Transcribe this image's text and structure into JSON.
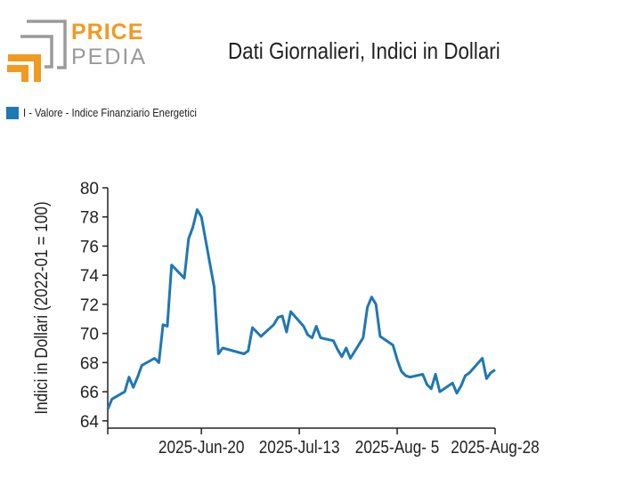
{
  "logo": {
    "word_top": "PRICE",
    "word_bottom": "PEDIA"
  },
  "colors": {
    "line": "#1f77b4",
    "logo_orange": "#f29a1f",
    "logo_gray": "#9a9a9a"
  },
  "chart_data": {
    "type": "line",
    "title": "Dati Giornalieri, Indici in Dollari",
    "ylabel": "Indici in Dollari (2022-01 = 100)",
    "xlabel": "",
    "ylim": [
      63.5,
      80
    ],
    "yticks": [
      64,
      66,
      68,
      70,
      72,
      74,
      76,
      78,
      80
    ],
    "xticks": [
      "2025-Jun-20",
      "2025-Jul-13",
      "2025-Aug- 5",
      "2025-Aug-28"
    ],
    "xlim": [
      "2025-May-29",
      "2025-Aug-28"
    ],
    "grid": false,
    "legend_position": "top-left",
    "series": [
      {
        "name": "I - Valore - Indice Finanziario Energetici",
        "x": [
          "2025-May-29",
          "2025-May-30",
          "2025-Jun-02",
          "2025-Jun-03",
          "2025-Jun-04",
          "2025-Jun-05",
          "2025-Jun-06",
          "2025-Jun-09",
          "2025-Jun-10",
          "2025-Jun-11",
          "2025-Jun-12",
          "2025-Jun-13",
          "2025-Jun-16",
          "2025-Jun-17",
          "2025-Jun-18",
          "2025-Jun-19",
          "2025-Jun-20",
          "2025-Jun-23",
          "2025-Jun-24",
          "2025-Jun-25",
          "2025-Jun-30",
          "2025-Jul-01",
          "2025-Jul-02",
          "2025-Jul-03",
          "2025-Jul-04",
          "2025-Jul-07",
          "2025-Jul-08",
          "2025-Jul-09",
          "2025-Jul-10",
          "2025-Jul-11",
          "2025-Jul-14",
          "2025-Jul-15",
          "2025-Jul-16",
          "2025-Jul-17",
          "2025-Jul-18",
          "2025-Jul-21",
          "2025-Jul-22",
          "2025-Jul-23",
          "2025-Jul-24",
          "2025-Jul-25",
          "2025-Jul-28",
          "2025-Jul-29",
          "2025-Jul-30",
          "2025-Jul-31",
          "2025-Aug-01",
          "2025-Aug-04",
          "2025-Aug-05",
          "2025-Aug-06",
          "2025-Aug-07",
          "2025-Aug-08",
          "2025-Aug-11",
          "2025-Aug-12",
          "2025-Aug-13",
          "2025-Aug-14",
          "2025-Aug-15",
          "2025-Aug-18",
          "2025-Aug-19",
          "2025-Aug-20",
          "2025-Aug-21",
          "2025-Aug-22",
          "2025-Aug-25",
          "2025-Aug-26",
          "2025-Aug-27",
          "2025-Aug-28"
        ],
        "values": [
          64.8,
          65.5,
          66.0,
          67.0,
          66.3,
          67.0,
          67.8,
          68.3,
          68.0,
          70.6,
          70.5,
          74.7,
          73.8,
          76.5,
          77.3,
          78.5,
          78.0,
          73.2,
          68.6,
          69.0,
          68.6,
          68.8,
          70.4,
          70.1,
          69.8,
          70.6,
          71.1,
          71.2,
          70.1,
          71.5,
          70.5,
          69.9,
          69.7,
          70.5,
          69.7,
          69.5,
          68.9,
          68.4,
          69.0,
          68.3,
          69.7,
          71.8,
          72.5,
          72.0,
          69.8,
          69.2,
          68.2,
          67.4,
          67.1,
          67.0,
          67.2,
          66.5,
          66.2,
          67.2,
          66.0,
          66.6,
          65.9,
          66.4,
          67.1,
          67.3,
          68.3,
          66.9,
          67.3,
          67.5
        ]
      }
    ]
  }
}
